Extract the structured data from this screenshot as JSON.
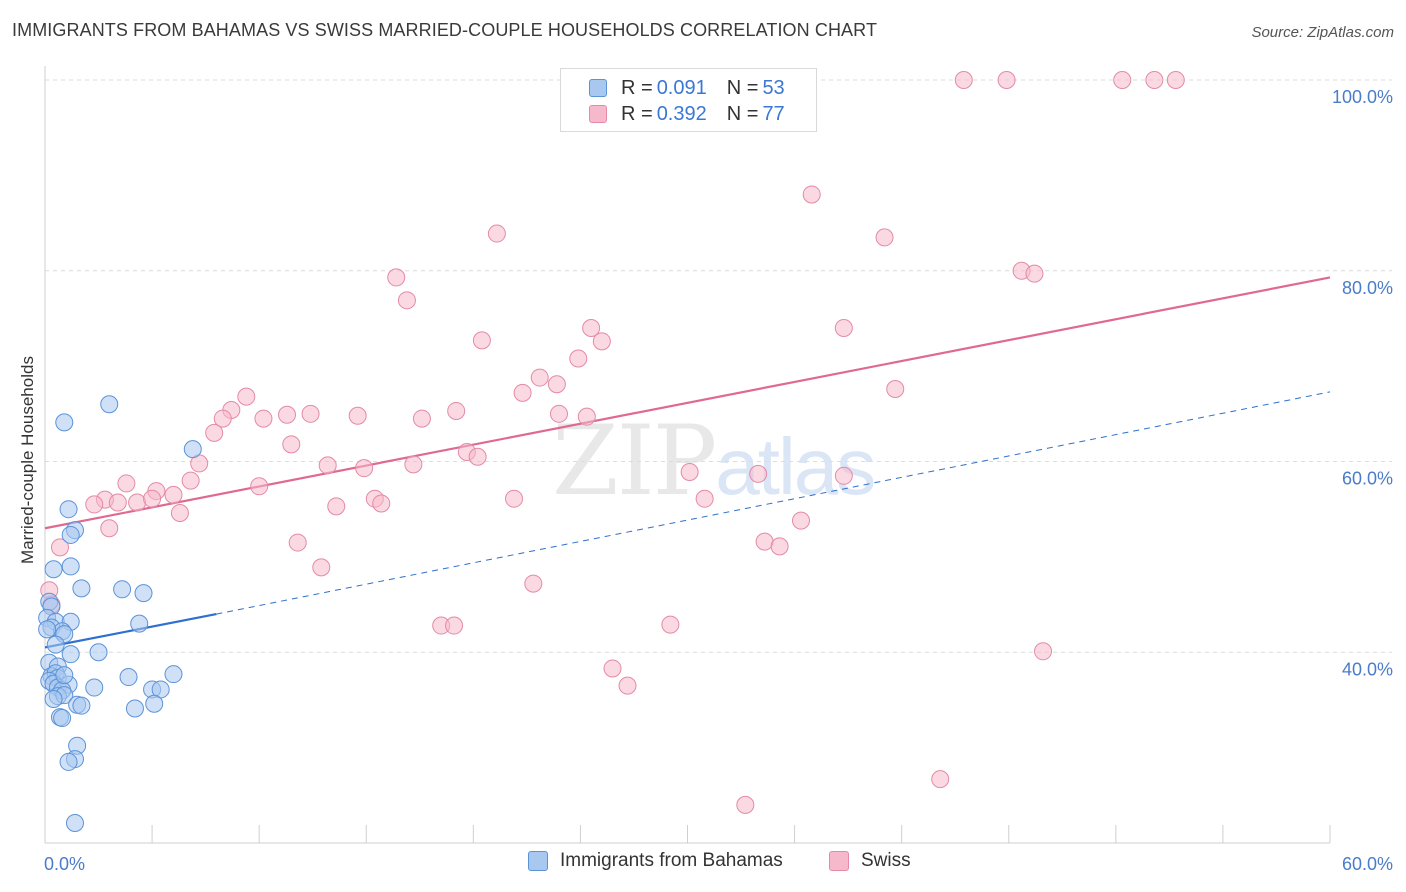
{
  "title": "IMMIGRANTS FROM BAHAMAS VS SWISS MARRIED-COUPLE HOUSEHOLDS CORRELATION CHART",
  "source": "Source: ZipAtlas.com",
  "watermark": {
    "zip": "ZIP",
    "atlas": "atlas"
  },
  "legend_top": {
    "rows": [
      {
        "r_label": "R = ",
        "r_value": "0.091",
        "n_label": "N = ",
        "n_value": "53",
        "color": "#a9c8f0"
      },
      {
        "r_label": "R = ",
        "r_value": "0.392",
        "n_label": "N = ",
        "n_value": "77",
        "color": "#f5b9cb"
      }
    ]
  },
  "legend_bottom": {
    "items": [
      {
        "label": "Immigrants from Bahamas",
        "color": "#a9c8f0"
      },
      {
        "label": "Swiss",
        "color": "#f5b9cb"
      }
    ]
  },
  "colors": {
    "blue_fill": "#a9c8f0",
    "blue_stroke": "#5b93d8",
    "blue_line": "#2f6fcf",
    "pink_fill": "#f5b9cb",
    "pink_stroke": "#e48aa7",
    "pink_line": "#e06991",
    "grid": "#dcdcdc",
    "tick_text": "#4a7cc9"
  },
  "chart_data": {
    "type": "scatter",
    "title": "IMMIGRANTS FROM BAHAMAS VS SWISS MARRIED-COUPLE HOUSEHOLDS CORRELATION CHART",
    "xlabel": "",
    "ylabel": "Married-couple Households",
    "xlim": [
      0,
      60
    ],
    "ylim": [
      20,
      102
    ],
    "x_tick_labels": [
      {
        "value": 0,
        "label": "0.0%"
      },
      {
        "value": 60,
        "label": "60.0%"
      }
    ],
    "y_tick_labels": [
      {
        "value": 40,
        "label": "40.0%"
      },
      {
        "value": 60,
        "label": "60.0%"
      },
      {
        "value": 80,
        "label": "80.0%"
      },
      {
        "value": 100,
        "label": "100.0%"
      }
    ],
    "grid": "horizontal dashed",
    "legend": "top-center",
    "series": [
      {
        "name": "Immigrants from Bahamas",
        "R": 0.091,
        "N": 53,
        "trend_solid": [
          [
            0,
            40.5
          ],
          [
            8,
            44.0
          ]
        ],
        "trend_dashed": [
          [
            8,
            44.0
          ],
          [
            60,
            67.3
          ]
        ],
        "points": [
          [
            3.0,
            66.0
          ],
          [
            0.9,
            64.1
          ],
          [
            6.9,
            61.3
          ],
          [
            1.1,
            55.0
          ],
          [
            1.4,
            52.8
          ],
          [
            1.2,
            52.3
          ],
          [
            0.4,
            48.7
          ],
          [
            1.2,
            49.0
          ],
          [
            1.7,
            46.7
          ],
          [
            3.6,
            46.6
          ],
          [
            4.6,
            46.2
          ],
          [
            0.2,
            45.3
          ],
          [
            0.3,
            44.8
          ],
          [
            0.1,
            43.6
          ],
          [
            0.5,
            43.2
          ],
          [
            1.2,
            43.2
          ],
          [
            0.3,
            42.6
          ],
          [
            0.8,
            42.2
          ],
          [
            0.9,
            41.9
          ],
          [
            4.4,
            43.0
          ],
          [
            0.5,
            40.8
          ],
          [
            2.5,
            40.0
          ],
          [
            1.2,
            39.8
          ],
          [
            0.2,
            38.9
          ],
          [
            0.6,
            38.5
          ],
          [
            0.3,
            37.5
          ],
          [
            0.5,
            37.8
          ],
          [
            0.6,
            37.3
          ],
          [
            0.2,
            37.0
          ],
          [
            3.9,
            37.4
          ],
          [
            6.0,
            37.7
          ],
          [
            0.4,
            36.7
          ],
          [
            0.6,
            36.3
          ],
          [
            1.1,
            36.6
          ],
          [
            0.8,
            36.0
          ],
          [
            2.3,
            36.3
          ],
          [
            5.0,
            36.1
          ],
          [
            5.4,
            36.1
          ],
          [
            0.6,
            35.4
          ],
          [
            0.9,
            35.5
          ],
          [
            0.4,
            35.1
          ],
          [
            1.5,
            34.5
          ],
          [
            1.7,
            34.4
          ],
          [
            4.2,
            34.1
          ],
          [
            5.1,
            34.6
          ],
          [
            0.7,
            33.2
          ],
          [
            0.8,
            33.1
          ],
          [
            1.5,
            30.2
          ],
          [
            1.4,
            28.8
          ],
          [
            1.1,
            28.5
          ],
          [
            1.4,
            22.1
          ],
          [
            0.1,
            42.4
          ],
          [
            0.9,
            37.6
          ]
        ]
      },
      {
        "name": "Swiss",
        "R": 0.392,
        "N": 77,
        "trend_solid": [
          [
            0,
            53.0
          ],
          [
            60,
            79.3
          ]
        ],
        "points": [
          [
            42.9,
            100.0
          ],
          [
            44.9,
            100.0
          ],
          [
            50.3,
            100.0
          ],
          [
            51.8,
            100.0
          ],
          [
            52.8,
            100.0
          ],
          [
            35.8,
            88.0
          ],
          [
            21.1,
            83.9
          ],
          [
            39.2,
            83.5
          ],
          [
            16.4,
            79.3
          ],
          [
            45.6,
            80.0
          ],
          [
            46.2,
            79.7
          ],
          [
            16.9,
            76.9
          ],
          [
            25.5,
            74.0
          ],
          [
            37.3,
            74.0
          ],
          [
            20.4,
            72.7
          ],
          [
            26.0,
            72.6
          ],
          [
            24.9,
            70.8
          ],
          [
            23.1,
            68.8
          ],
          [
            22.3,
            67.2
          ],
          [
            23.9,
            68.1
          ],
          [
            39.7,
            67.6
          ],
          [
            9.4,
            66.8
          ],
          [
            8.7,
            65.4
          ],
          [
            8.3,
            64.5
          ],
          [
            10.2,
            64.5
          ],
          [
            11.3,
            64.9
          ],
          [
            12.4,
            65.0
          ],
          [
            14.6,
            64.8
          ],
          [
            17.6,
            64.5
          ],
          [
            19.2,
            65.3
          ],
          [
            24.0,
            65.0
          ],
          [
            25.3,
            64.7
          ],
          [
            7.9,
            63.0
          ],
          [
            11.5,
            61.8
          ],
          [
            19.7,
            61.0
          ],
          [
            20.2,
            60.5
          ],
          [
            7.2,
            59.8
          ],
          [
            13.2,
            59.6
          ],
          [
            14.9,
            59.3
          ],
          [
            17.2,
            59.7
          ],
          [
            30.1,
            58.9
          ],
          [
            33.3,
            58.7
          ],
          [
            37.3,
            58.5
          ],
          [
            6.8,
            58.0
          ],
          [
            3.8,
            57.7
          ],
          [
            10.0,
            57.4
          ],
          [
            5.2,
            56.9
          ],
          [
            6.0,
            56.5
          ],
          [
            2.8,
            56.0
          ],
          [
            3.4,
            55.7
          ],
          [
            4.3,
            55.7
          ],
          [
            5.0,
            56.1
          ],
          [
            2.3,
            55.5
          ],
          [
            15.4,
            56.1
          ],
          [
            15.7,
            55.6
          ],
          [
            21.9,
            56.1
          ],
          [
            30.8,
            56.1
          ],
          [
            13.6,
            55.3
          ],
          [
            6.3,
            54.6
          ],
          [
            35.3,
            53.8
          ],
          [
            3.0,
            53.0
          ],
          [
            11.8,
            51.5
          ],
          [
            33.6,
            51.6
          ],
          [
            34.3,
            51.1
          ],
          [
            0.7,
            51.0
          ],
          [
            12.9,
            48.9
          ],
          [
            22.8,
            47.2
          ],
          [
            0.2,
            46.5
          ],
          [
            0.3,
            45.0
          ],
          [
            18.5,
            42.8
          ],
          [
            19.1,
            42.8
          ],
          [
            29.2,
            42.9
          ],
          [
            46.6,
            40.1
          ],
          [
            26.5,
            38.3
          ],
          [
            27.2,
            36.5
          ],
          [
            41.8,
            26.7
          ],
          [
            32.7,
            24.0
          ]
        ]
      }
    ]
  }
}
